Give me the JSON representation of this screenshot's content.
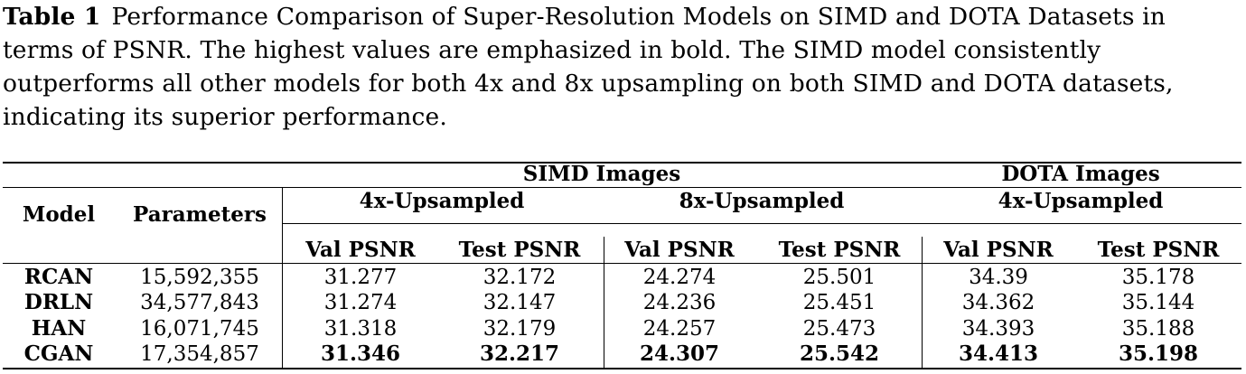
{
  "caption": {
    "label": "Table 1",
    "text": "Performance Comparison of Super-Resolution Models on SIMD and DOTA Datasets in terms of PSNR. The highest values are emphasized in bold. The SIMD model consistently outperforms all other models for both 4x and 8x upsampling on both SIMD and DOTA datasets, indicating its superior performance."
  },
  "table": {
    "group_headers": [
      "SIMD Images",
      "DOTA Images"
    ],
    "sub_headers": [
      "4x-Upsampled",
      "8x-Upsampled",
      "4x-Upsampled"
    ],
    "col_headers": [
      "Model",
      "Parameters",
      "Val PSNR",
      "Test PSNR",
      "Val PSNR",
      "Test PSNR",
      "Val PSNR",
      "Test PSNR"
    ],
    "rows": [
      [
        "RCAN",
        "15,592,355",
        "31.277",
        "32.172",
        "24.274",
        "25.501",
        "34.39",
        "35.178"
      ],
      [
        "DRLN",
        "34,577,843",
        "31.274",
        "32.147",
        "24.236",
        "25.451",
        "34.362",
        "35.144"
      ],
      [
        "HAN",
        "16,071,745",
        "31.318",
        "32.179",
        "24.257",
        "25.473",
        "34.393",
        "35.188"
      ],
      [
        "CGAN",
        "17,354,857",
        "31.346",
        "32.217",
        "24.307",
        "25.542",
        "34.413",
        "35.198"
      ]
    ],
    "bold_row": 3
  }
}
